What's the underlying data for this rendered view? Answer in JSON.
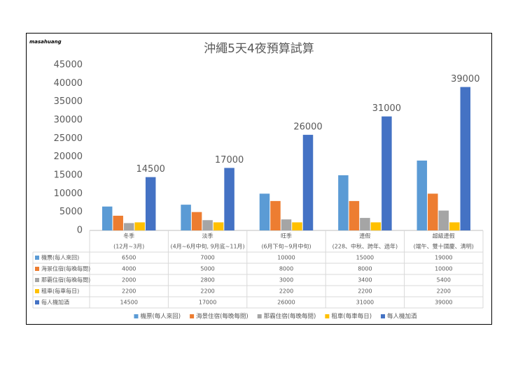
{
  "chart_data": {
    "type": "bar",
    "title": "沖繩5天4夜預算試算",
    "watermark": "masahuang",
    "categories": [
      [
        "冬季",
        "(12月~3月)"
      ],
      [
        "淡季",
        "(4月~6月中旬, 9月底~11月)"
      ],
      [
        "旺季",
        "(6月下旬~9月中旬)"
      ],
      [
        "連假",
        "(228、中秋、跨年、過年)"
      ],
      [
        "超級連假",
        "(端午、雙十國慶、清明)"
      ]
    ],
    "series": [
      {
        "name": "機票(每人來回)",
        "color": "#5b9bd5",
        "values": [
          6500,
          7000,
          10000,
          15000,
          19000
        ]
      },
      {
        "name": "海景住宿(每晚每間)",
        "color": "#ed7d31",
        "values": [
          4000,
          5000,
          8000,
          8000,
          10000
        ]
      },
      {
        "name": "那霸住宿(每晚每間)",
        "color": "#a5a5a5",
        "values": [
          2000,
          2800,
          3000,
          3400,
          5400
        ]
      },
      {
        "name": "租車(每車每日)",
        "color": "#ffc000",
        "values": [
          2200,
          2200,
          2200,
          2200,
          2200
        ]
      },
      {
        "name": "每人機加酒",
        "color": "#4472c4",
        "values": [
          14500,
          17000,
          26000,
          31000,
          39000
        ],
        "data_labels": true
      }
    ],
    "ylim": [
      0,
      45000
    ],
    "yticks": [
      0,
      5000,
      10000,
      15000,
      20000,
      25000,
      30000,
      35000,
      40000,
      45000
    ],
    "grid": false,
    "legend": "bottom",
    "data_table": true
  }
}
